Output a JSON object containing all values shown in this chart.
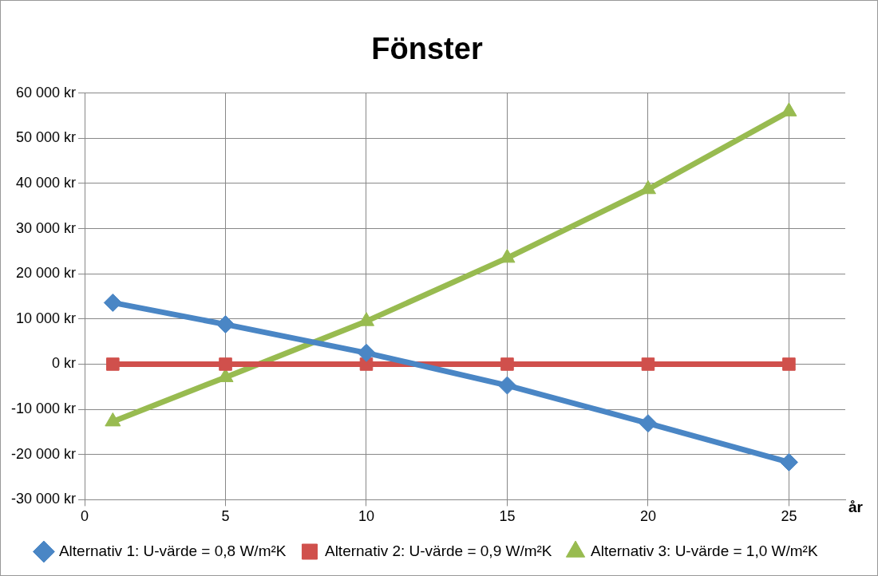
{
  "chart_data": {
    "type": "line",
    "title": "Fönster",
    "xlabel": "år",
    "x": [
      1,
      5,
      10,
      15,
      20,
      25
    ],
    "series": [
      {
        "name": "Alternativ 1: U-värde = 0,8 W/m²K",
        "color": "#4a86c5",
        "marker": "diamond",
        "values": [
          13600,
          8800,
          2500,
          -4700,
          -13100,
          -21700
        ]
      },
      {
        "name": "Alternativ 2: U-värde = 0,9 W/m²K",
        "color": "#d0504c",
        "marker": "square",
        "values": [
          0,
          0,
          0,
          0,
          0,
          0
        ]
      },
      {
        "name": "Alternativ 3: U-värde = 1,0 W/m²K",
        "color": "#98bb50",
        "marker": "triangle",
        "values": [
          -12700,
          -2900,
          9500,
          23500,
          38700,
          55900
        ]
      }
    ],
    "xlim": [
      0,
      27
    ],
    "xticks": [
      0,
      5,
      10,
      15,
      20,
      25
    ],
    "ylim": [
      -30000,
      60000
    ],
    "yticks": [
      {
        "value": -30000,
        "label": "-30 000 kr"
      },
      {
        "value": -20000,
        "label": "-20 000 kr"
      },
      {
        "value": -10000,
        "label": "-10 000 kr"
      },
      {
        "value": 0,
        "label": "0 kr"
      },
      {
        "value": 10000,
        "label": "10 000 kr"
      },
      {
        "value": 20000,
        "label": "20 000 kr"
      },
      {
        "value": 30000,
        "label": "30 000 kr"
      },
      {
        "value": 40000,
        "label": "40 000 kr"
      },
      {
        "value": 50000,
        "label": "50 000 kr"
      },
      {
        "value": 60000,
        "label": "60 000 kr"
      }
    ],
    "grid": true,
    "legend": "bottom",
    "line_style": "solid"
  }
}
